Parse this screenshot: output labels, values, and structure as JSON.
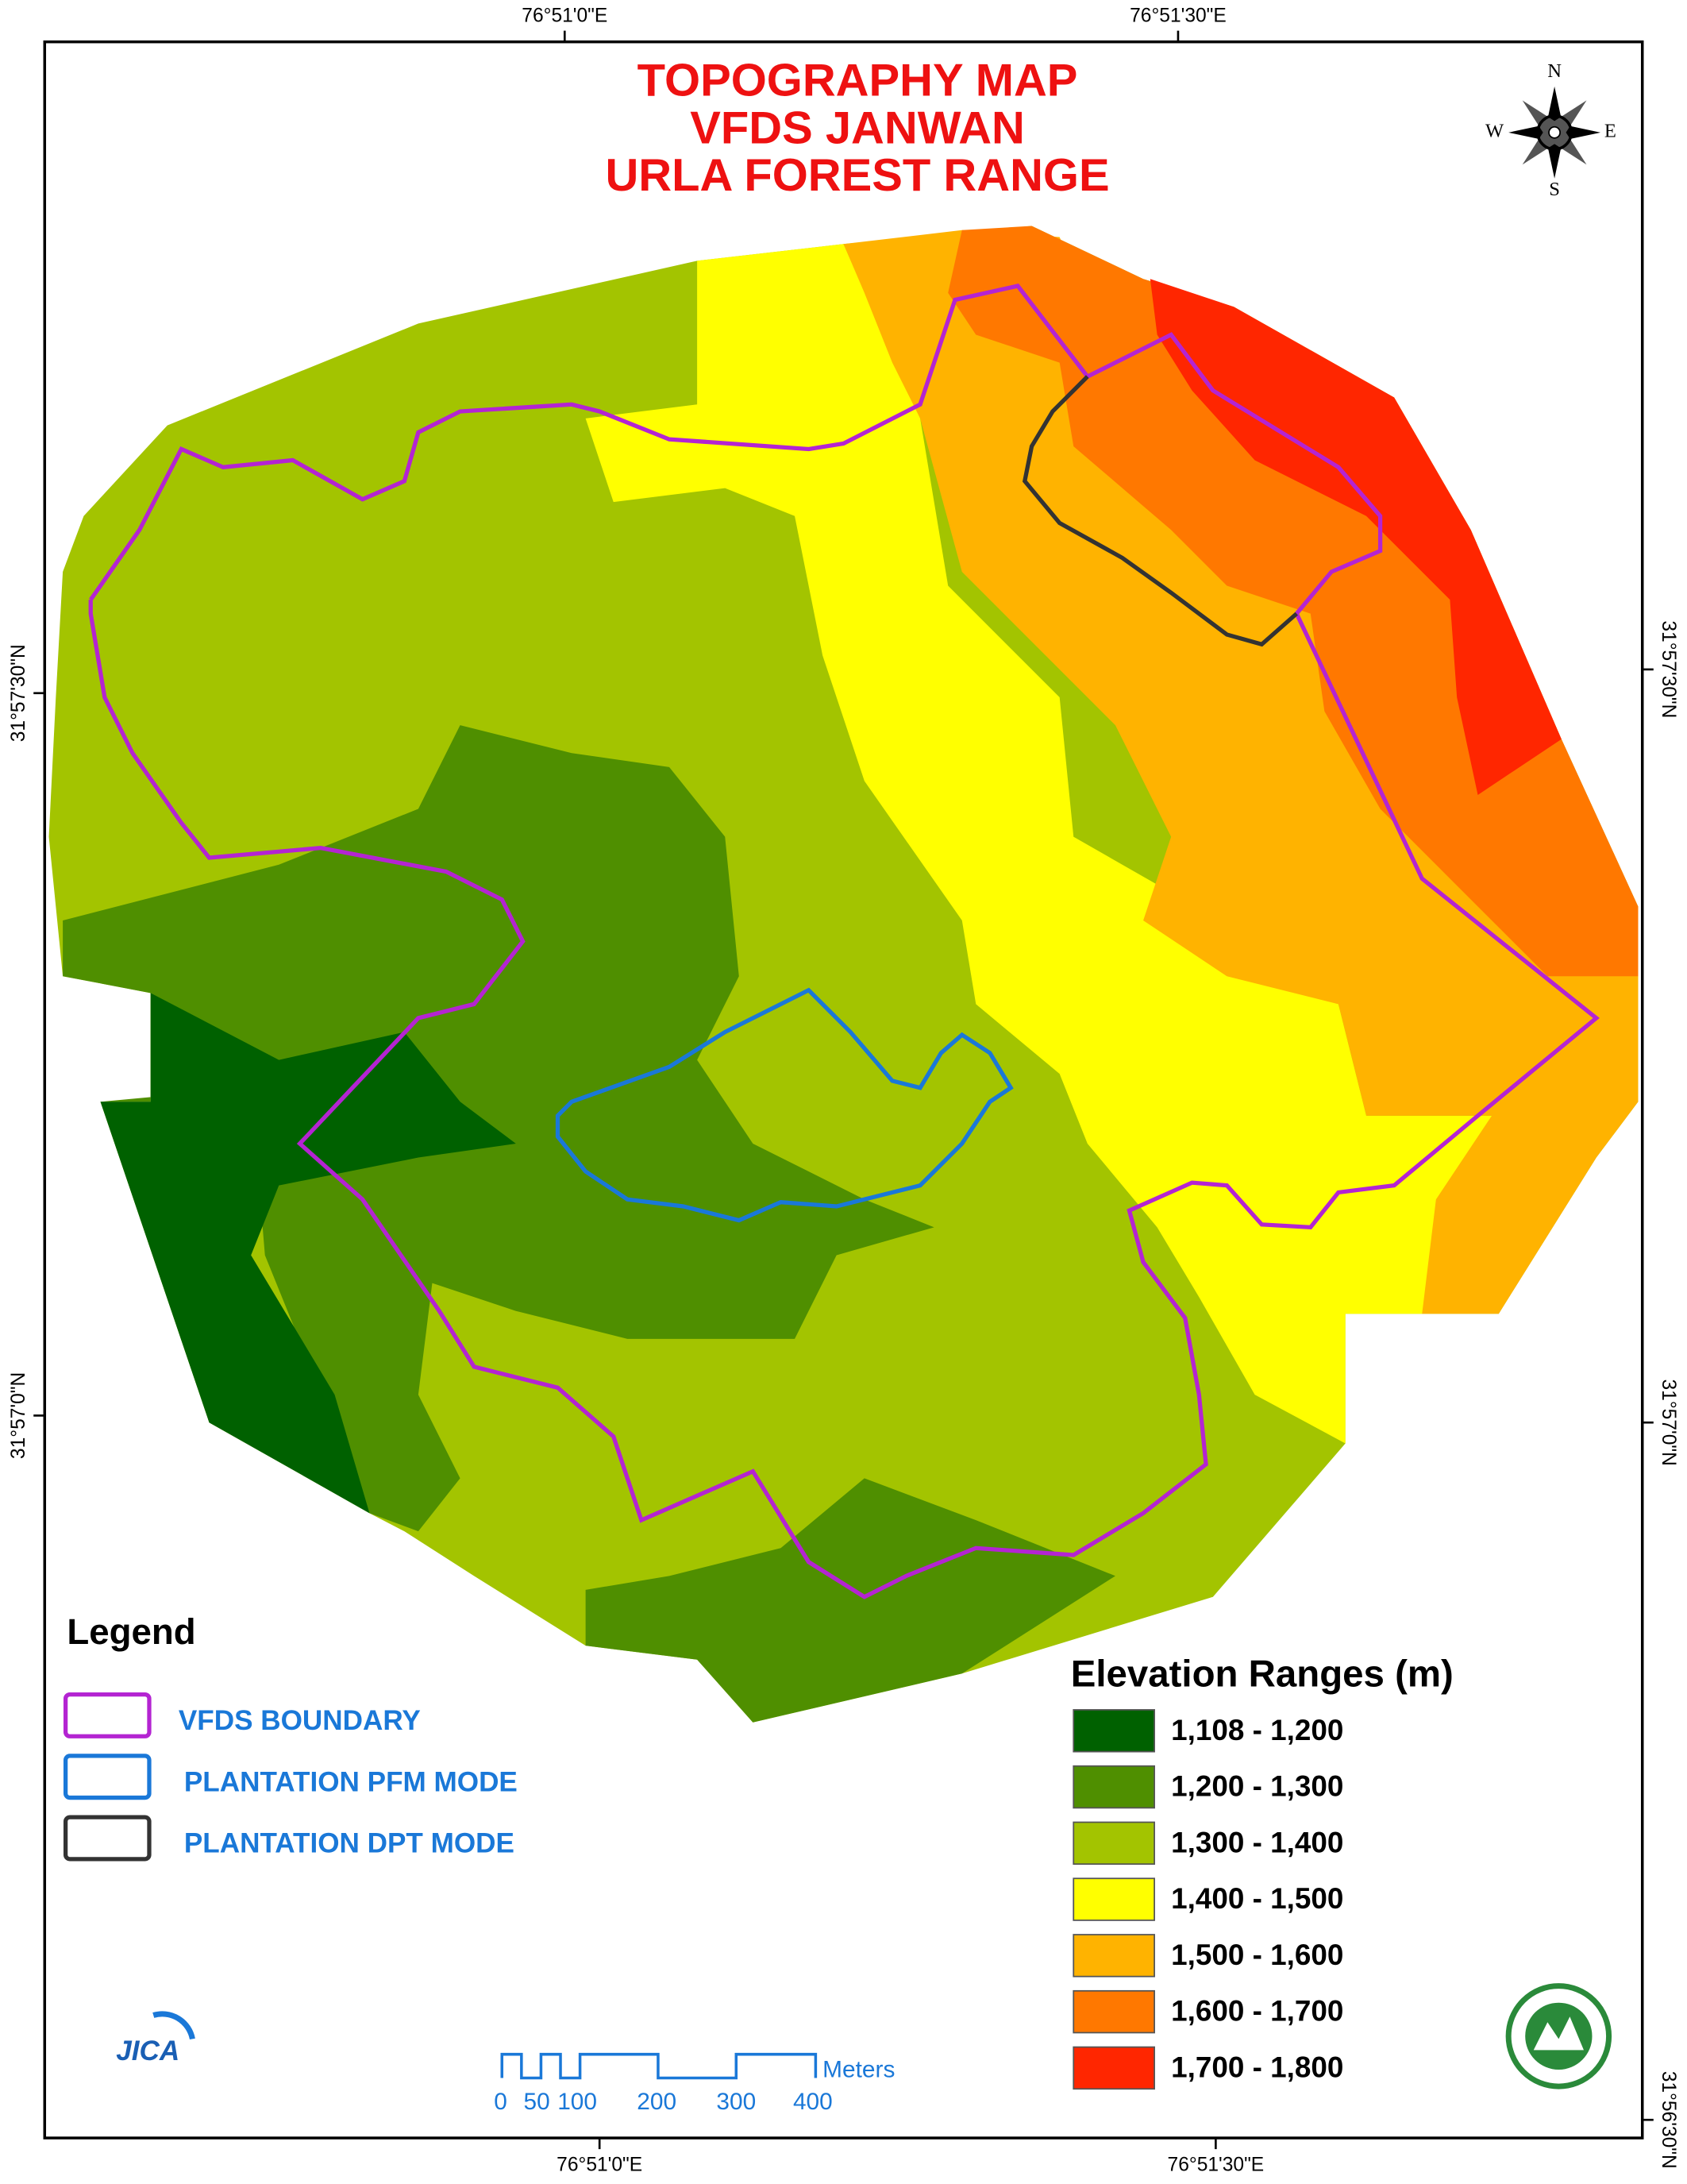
{
  "title": [
    "TOPOGRAPHY MAP",
    "VFDS JANWAN",
    "URLA FOREST RANGE"
  ],
  "graticule": {
    "top": [
      "76°51'0\"E",
      "76°51'30\"E"
    ],
    "bottom": [
      "76°51'0\"E",
      "76°51'30\"E"
    ],
    "left": [
      "31°57'30\"N",
      "31°57'0\"N"
    ],
    "right": [
      "31°57'30\"N",
      "31°57'0\"N",
      "31°56'30\"N"
    ]
  },
  "compass": {
    "n": "N",
    "e": "E",
    "s": "S",
    "w": "W"
  },
  "legend": {
    "title": "Legend",
    "items": [
      {
        "label": "VFDS BOUNDARY",
        "color": "#b424d2"
      },
      {
        "label": "PLANTATION PFM MODE",
        "color": "#1a78d8"
      },
      {
        "label": "PLANTATION DPT MODE",
        "color": "#333333"
      }
    ]
  },
  "elevation": {
    "title": "Elevation Ranges (m)",
    "classes": [
      {
        "label": "1,108 - 1,200",
        "color": "#006100"
      },
      {
        "label": "1,200 - 1,300",
        "color": "#4f8f00"
      },
      {
        "label": "1,300 - 1,400",
        "color": "#a3c400"
      },
      {
        "label": "1,400 - 1,500",
        "color": "#ffff00"
      },
      {
        "label": "1,500 - 1,600",
        "color": "#ffb300"
      },
      {
        "label": "1,600 - 1,700",
        "color": "#ff7800"
      },
      {
        "label": "1,700 - 1,800",
        "color": "#ff2600"
      }
    ]
  },
  "scale_bar": {
    "labels": [
      "0",
      "50",
      "100",
      "200",
      "300",
      "400"
    ],
    "unit": "Meters"
  },
  "logo": "JICA"
}
